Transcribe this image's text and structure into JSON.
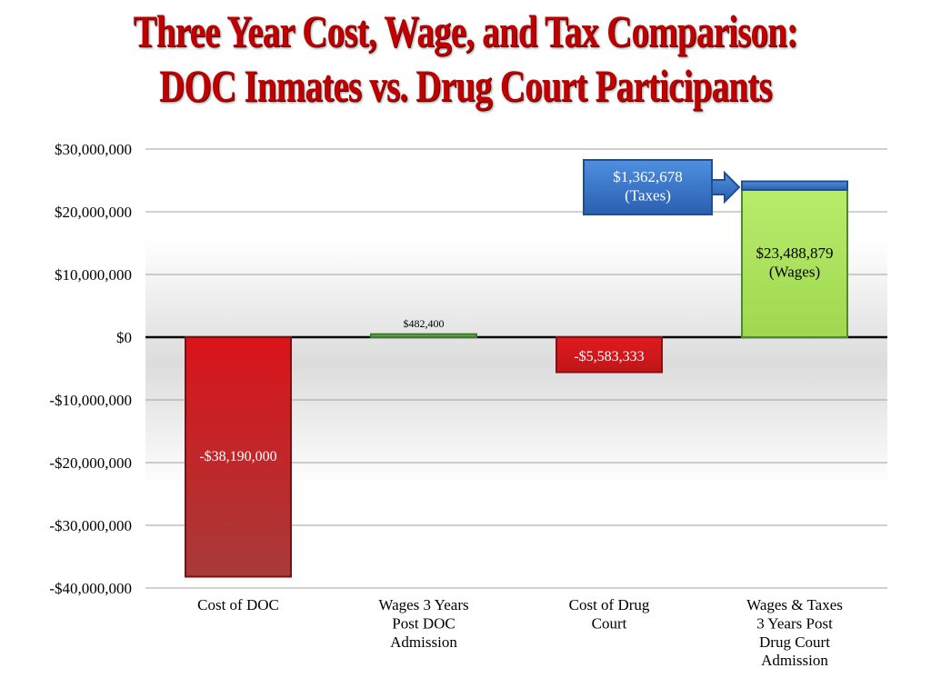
{
  "title_line1": "Three Year Cost, Wage, and Tax Comparison:",
  "title_line2": "DOC Inmates vs. Drug Court Participants",
  "colors": {
    "title": "#c00000",
    "cost_bar": "#c0161a",
    "wages_doc_bar": "#6aa84f",
    "wages_dc_bar": "#a8e05a",
    "taxes": "#2f6fbf",
    "axis": "#000000",
    "grid": "#a0a0a0"
  },
  "chart_data": {
    "type": "bar",
    "categories": [
      [
        "Cost of DOC"
      ],
      [
        "Wages 3 Years",
        "Post DOC",
        "Admission"
      ],
      [
        "Cost of Drug",
        "Court"
      ],
      [
        "Wages & Taxes",
        "3 Years Post",
        "Drug Court",
        "Admission"
      ]
    ],
    "values": [
      -38190000,
      482400,
      -5583333,
      23488879
    ],
    "stacked_on_last": {
      "value": 1362678,
      "label": [
        "$1,362,678",
        "(Taxes)"
      ]
    },
    "value_labels": [
      [
        "-$38,190,000"
      ],
      [
        "$482,400"
      ],
      [
        "-$5,583,333"
      ],
      [
        "$23,488,879",
        "(Wages)"
      ]
    ],
    "ylim": [
      -40000000,
      30000000
    ],
    "yticks": [
      30000000,
      20000000,
      10000000,
      0,
      -10000000,
      -20000000,
      -30000000,
      -40000000
    ],
    "ytick_labels": [
      "$30,000,000",
      "$20,000,000",
      "$10,000,000",
      "$0",
      "-$10,000,000",
      "-$20,000,000",
      "-$30,000,000",
      "-$40,000,000"
    ],
    "grid": true,
    "xlabel": "",
    "ylabel": ""
  }
}
